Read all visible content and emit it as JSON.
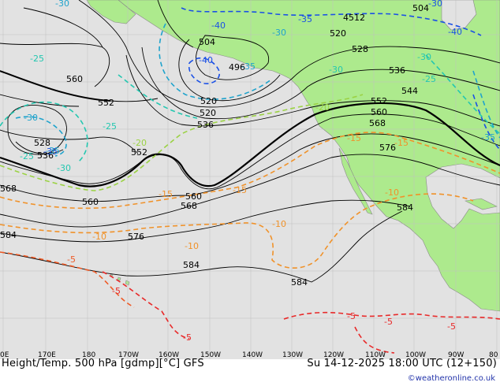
{
  "map": {
    "title_left": "Height/Temp. 500 hPa [gdmp][°C] GFS",
    "title_right": "Su 14-12-2025 18:00 UTC (12+150)",
    "credit": "©weatheronline.co.uk",
    "longitude_labels": [
      "0E",
      "170E",
      "180",
      "170W",
      "160W",
      "150W",
      "140W",
      "130W",
      "120W",
      "110W",
      "100W",
      "90W",
      "80"
    ],
    "height_labels": [
      "504",
      "4512",
      "520",
      "528",
      "536",
      "544",
      "552",
      "560",
      "568",
      "576",
      "584",
      "496",
      "504",
      "520",
      "536",
      "552",
      "560",
      "568",
      "576",
      "584",
      "584",
      "560",
      "528",
      "536",
      "552",
      "568",
      "584"
    ],
    "temp_labels": [
      "-40",
      "-35",
      "-30",
      "-25",
      "-25",
      "-20",
      "-30",
      "-35",
      "-30",
      "-25",
      "-20",
      "-40",
      "-35",
      "-30",
      "-30",
      "-25",
      "-15",
      "-15",
      "-15",
      "-10",
      "-10",
      "-10",
      "-10",
      "-5",
      "-5",
      "-5",
      "-5",
      "-5",
      "-5",
      "-30",
      "-35",
      "-30",
      "-15",
      "-40",
      "-35"
    ],
    "colors": {
      "ocean": "#e2e2e2",
      "land": "#adea8d",
      "height_contour": "#000000",
      "temp_very_cold": "#1a50e6",
      "temp_cold": "#1fa3cc",
      "temp_cool": "#24c7b0",
      "temp_mild": "#9bd244",
      "temp_warm": "#f0922a",
      "temp_warmer": "#ee5a26",
      "temp_hot": "#e82a2a"
    }
  }
}
